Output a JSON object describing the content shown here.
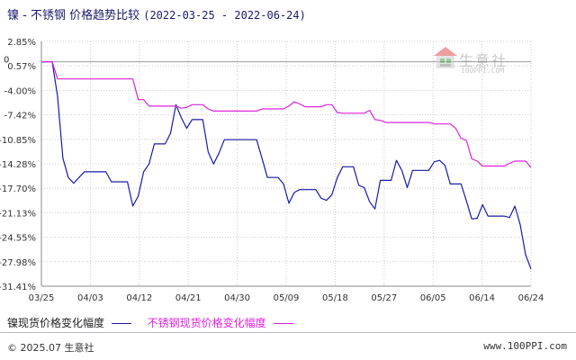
{
  "header": {
    "title": "镍 - 不锈钢 价格趋势比较",
    "date_range": "(2022-03-25 - 2022-06-24)"
  },
  "watermark": {
    "name": "生意社",
    "url": "100PPI.COM"
  },
  "footer": {
    "copyright": "© 2025.07 生意社",
    "site": "www.100PPI.com"
  },
  "colors": {
    "series_nickel": "#1a1aaa",
    "series_stainless": "#dd22dd",
    "grid": "#cccccc",
    "axis": "#888888"
  },
  "chart_data": {
    "type": "line",
    "x_ticks": [
      "03/25",
      "04/03",
      "04/12",
      "04/21",
      "04/30",
      "05/09",
      "05/18",
      "05/27",
      "06/05",
      "06/14",
      "06/24"
    ],
    "y_ticks": [
      "2.85%",
      "0.57%",
      "-4.00%",
      "-7.42%",
      "-10.85%",
      "-14.28%",
      "-17.70%",
      "-21.13%",
      "-24.55%",
      "-27.98%",
      "-31.41%"
    ],
    "y_zero_label": "0",
    "ylim": [
      -31.41,
      2.85
    ],
    "x_range": [
      "2022-03-25",
      "2022-06-24"
    ],
    "grid": "dotted horizontal and vertical",
    "legend_position": "bottom-left",
    "series": [
      {
        "name": "镍现货价格变化幅度",
        "color": "#1a1aaa",
        "points": [
          [
            "2022-03-25",
            0.0
          ],
          [
            "2022-03-26",
            0.0
          ],
          [
            "2022-03-27",
            0.0
          ],
          [
            "2022-03-28",
            -4.8
          ],
          [
            "2022-03-29",
            -13.5
          ],
          [
            "2022-03-30",
            -16.2
          ],
          [
            "2022-03-31",
            -17.0
          ],
          [
            "2022-04-01",
            -16.2
          ],
          [
            "2022-04-02",
            -15.4
          ],
          [
            "2022-04-03",
            -15.4
          ],
          [
            "2022-04-04",
            -15.4
          ],
          [
            "2022-04-05",
            -15.4
          ],
          [
            "2022-04-06",
            -15.4
          ],
          [
            "2022-04-07",
            -16.8
          ],
          [
            "2022-04-08",
            -16.8
          ],
          [
            "2022-04-09",
            -16.8
          ],
          [
            "2022-04-10",
            -16.8
          ],
          [
            "2022-04-11",
            -20.2
          ],
          [
            "2022-04-12",
            -18.8
          ],
          [
            "2022-04-13",
            -15.4
          ],
          [
            "2022-04-14",
            -14.3
          ],
          [
            "2022-04-15",
            -11.5
          ],
          [
            "2022-04-16",
            -11.5
          ],
          [
            "2022-04-17",
            -11.5
          ],
          [
            "2022-04-18",
            -10.0
          ],
          [
            "2022-04-19",
            -6.0
          ],
          [
            "2022-04-20",
            -7.8
          ],
          [
            "2022-04-21",
            -9.3
          ],
          [
            "2022-04-22",
            -8.1
          ],
          [
            "2022-04-23",
            -8.1
          ],
          [
            "2022-04-24",
            -8.1
          ],
          [
            "2022-04-25",
            -12.6
          ],
          [
            "2022-04-26",
            -14.3
          ],
          [
            "2022-04-27",
            -12.8
          ],
          [
            "2022-04-28",
            -10.9
          ],
          [
            "2022-04-29",
            -10.9
          ],
          [
            "2022-04-30",
            -10.9
          ],
          [
            "2022-05-01",
            -10.9
          ],
          [
            "2022-05-02",
            -10.9
          ],
          [
            "2022-05-03",
            -10.9
          ],
          [
            "2022-05-04",
            -10.9
          ],
          [
            "2022-05-05",
            -13.5
          ],
          [
            "2022-05-06",
            -16.2
          ],
          [
            "2022-05-07",
            -16.2
          ],
          [
            "2022-05-08",
            -16.2
          ],
          [
            "2022-05-09",
            -17.1
          ],
          [
            "2022-05-10",
            -19.8
          ],
          [
            "2022-05-11",
            -18.3
          ],
          [
            "2022-05-12",
            -17.9
          ],
          [
            "2022-05-13",
            -17.9
          ],
          [
            "2022-05-14",
            -17.9
          ],
          [
            "2022-05-15",
            -17.9
          ],
          [
            "2022-05-16",
            -19.1
          ],
          [
            "2022-05-17",
            -19.4
          ],
          [
            "2022-05-18",
            -18.6
          ],
          [
            "2022-05-19",
            -16.2
          ],
          [
            "2022-05-20",
            -14.7
          ],
          [
            "2022-05-21",
            -14.7
          ],
          [
            "2022-05-22",
            -14.7
          ],
          [
            "2022-05-23",
            -17.3
          ],
          [
            "2022-05-24",
            -17.6
          ],
          [
            "2022-05-25",
            -19.6
          ],
          [
            "2022-05-26",
            -20.6
          ],
          [
            "2022-05-27",
            -16.6
          ],
          [
            "2022-05-28",
            -16.6
          ],
          [
            "2022-05-29",
            -16.6
          ],
          [
            "2022-05-30",
            -13.8
          ],
          [
            "2022-05-31",
            -15.2
          ],
          [
            "2022-06-01",
            -17.6
          ],
          [
            "2022-06-02",
            -15.2
          ],
          [
            "2022-06-03",
            -15.2
          ],
          [
            "2022-06-04",
            -15.2
          ],
          [
            "2022-06-05",
            -15.2
          ],
          [
            "2022-06-06",
            -14.0
          ],
          [
            "2022-06-07",
            -13.8
          ],
          [
            "2022-06-08",
            -14.5
          ],
          [
            "2022-06-09",
            -17.1
          ],
          [
            "2022-06-10",
            -17.1
          ],
          [
            "2022-06-11",
            -17.1
          ],
          [
            "2022-06-12",
            -19.5
          ],
          [
            "2022-06-13",
            -22.0
          ],
          [
            "2022-06-14",
            -21.9
          ],
          [
            "2022-06-15",
            -20.0
          ],
          [
            "2022-06-16",
            -21.6
          ],
          [
            "2022-06-17",
            -21.6
          ],
          [
            "2022-06-18",
            -21.6
          ],
          [
            "2022-06-19",
            -21.6
          ],
          [
            "2022-06-20",
            -21.8
          ],
          [
            "2022-06-21",
            -20.2
          ],
          [
            "2022-06-22",
            -22.8
          ],
          [
            "2022-06-23",
            -27.0
          ],
          [
            "2022-06-24",
            -29.0
          ]
        ]
      },
      {
        "name": "不锈钢现货价格变化幅度",
        "color": "#dd22dd",
        "points": [
          [
            "2022-03-25",
            0.0
          ],
          [
            "2022-03-26",
            0.0
          ],
          [
            "2022-03-27",
            0.0
          ],
          [
            "2022-03-28",
            -2.4
          ],
          [
            "2022-03-30",
            -2.4
          ],
          [
            "2022-04-03",
            -2.4
          ],
          [
            "2022-04-06",
            -2.4
          ],
          [
            "2022-04-09",
            -2.4
          ],
          [
            "2022-04-11",
            -2.4
          ],
          [
            "2022-04-12",
            -5.3
          ],
          [
            "2022-04-13",
            -5.3
          ],
          [
            "2022-04-14",
            -6.2
          ],
          [
            "2022-04-19",
            -6.2
          ],
          [
            "2022-04-20",
            -6.5
          ],
          [
            "2022-04-21",
            -6.4
          ],
          [
            "2022-04-22",
            -6.0
          ],
          [
            "2022-04-24",
            -6.0
          ],
          [
            "2022-04-25",
            -6.6
          ],
          [
            "2022-04-26",
            -6.9
          ],
          [
            "2022-04-29",
            -6.9
          ],
          [
            "2022-05-02",
            -6.9
          ],
          [
            "2022-05-04",
            -6.9
          ],
          [
            "2022-05-05",
            -6.6
          ],
          [
            "2022-05-08",
            -6.6
          ],
          [
            "2022-05-09",
            -6.6
          ],
          [
            "2022-05-10",
            -6.2
          ],
          [
            "2022-05-11",
            -5.6
          ],
          [
            "2022-05-12",
            -5.9
          ],
          [
            "2022-05-13",
            -6.3
          ],
          [
            "2022-05-16",
            -6.3
          ],
          [
            "2022-05-17",
            -6.0
          ],
          [
            "2022-05-18",
            -6.0
          ],
          [
            "2022-05-19",
            -7.1
          ],
          [
            "2022-05-20",
            -7.2
          ],
          [
            "2022-05-24",
            -7.2
          ],
          [
            "2022-05-25",
            -6.8
          ],
          [
            "2022-05-26",
            -8.1
          ],
          [
            "2022-05-27",
            -8.2
          ],
          [
            "2022-05-28",
            -8.5
          ],
          [
            "2022-06-01",
            -8.5
          ],
          [
            "2022-06-05",
            -8.5
          ],
          [
            "2022-06-06",
            -8.7
          ],
          [
            "2022-06-09",
            -8.7
          ],
          [
            "2022-06-10",
            -9.3
          ],
          [
            "2022-06-11",
            -10.7
          ],
          [
            "2022-06-12",
            -11.0
          ],
          [
            "2022-06-13",
            -13.6
          ],
          [
            "2022-06-14",
            -13.9
          ],
          [
            "2022-06-15",
            -14.6
          ],
          [
            "2022-06-18",
            -14.6
          ],
          [
            "2022-06-19",
            -14.6
          ],
          [
            "2022-06-20",
            -14.2
          ],
          [
            "2022-06-21",
            -13.9
          ],
          [
            "2022-06-23",
            -13.9
          ],
          [
            "2022-06-24",
            -14.8
          ]
        ]
      }
    ]
  }
}
